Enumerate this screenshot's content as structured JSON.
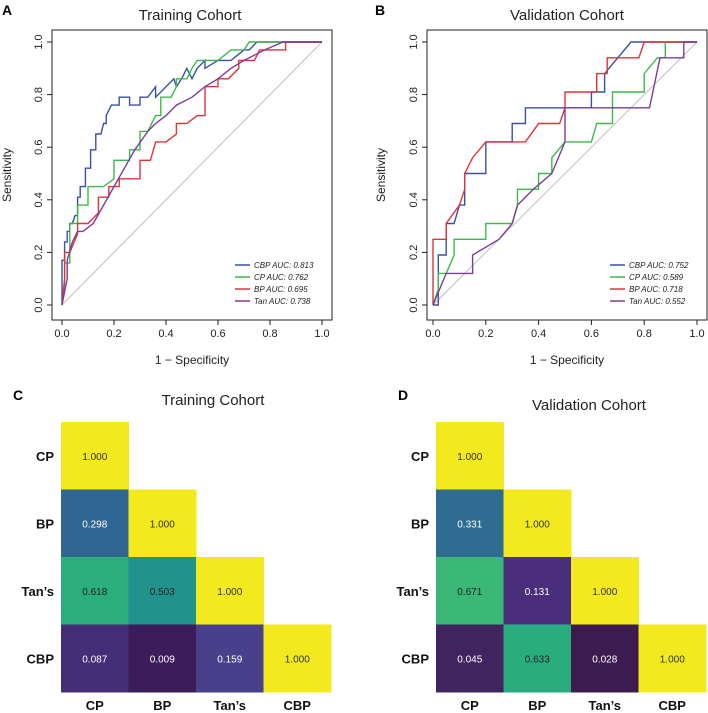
{
  "colors": {
    "CBP": "#3a50a8",
    "CP": "#3fb84a",
    "BP": "#e0333a",
    "Tan": "#7d3c98",
    "diagonal": "#bfbfbf"
  },
  "chart_data": [
    {
      "type": "line",
      "panel": "A",
      "title": "Training Cohort",
      "xlabel": "1 − Specificity",
      "ylabel": "Sensitivity",
      "xlim": [
        0,
        1
      ],
      "ylim": [
        0,
        1
      ],
      "xticks": [
        "0.0",
        "0.2",
        "0.4",
        "0.6",
        "0.8",
        "1.0"
      ],
      "yticks": [
        "0.0",
        "0.2",
        "0.4",
        "0.6",
        "0.8",
        "1.0"
      ],
      "diagonal": true,
      "legend_position": "bottom-right",
      "series": [
        {
          "name": "CBP",
          "legend": "CBP AUC: 0.813",
          "color_key": "CBP",
          "x": [
            0,
            0,
            0.01,
            0.01,
            0.02,
            0.02,
            0.03,
            0.03,
            0.04,
            0.05,
            0.06,
            0.06,
            0.07,
            0.07,
            0.09,
            0.09,
            0.11,
            0.11,
            0.13,
            0.13,
            0.15,
            0.16,
            0.17,
            0.17,
            0.19,
            0.22,
            0.22,
            0.26,
            0.26,
            0.3,
            0.3,
            0.33,
            0.36,
            0.36,
            0.4,
            0.43,
            0.44,
            0.46,
            0.48,
            0.5,
            0.52,
            0.55,
            0.55,
            0.6,
            0.65,
            0.7,
            0.72,
            0.75,
            0.8,
            0.85,
            0.9,
            0.95,
            1
          ],
          "y": [
            0,
            0.17,
            0.17,
            0.24,
            0.24,
            0.28,
            0.28,
            0.31,
            0.31,
            0.34,
            0.34,
            0.41,
            0.41,
            0.45,
            0.45,
            0.52,
            0.52,
            0.59,
            0.59,
            0.65,
            0.65,
            0.69,
            0.69,
            0.72,
            0.76,
            0.76,
            0.79,
            0.79,
            0.76,
            0.76,
            0.79,
            0.79,
            0.83,
            0.79,
            0.83,
            0.86,
            0.83,
            0.86,
            0.9,
            0.86,
            0.9,
            0.93,
            0.9,
            0.93,
            0.93,
            0.97,
            0.97,
            1.0,
            1.0,
            1.0,
            1.0,
            1.0,
            1.0
          ]
        },
        {
          "name": "CP",
          "legend": "CP  AUC: 0.762",
          "color_key": "CP",
          "x": [
            0,
            0.01,
            0.01,
            0.03,
            0.03,
            0.06,
            0.06,
            0.1,
            0.1,
            0.12,
            0.16,
            0.2,
            0.2,
            0.26,
            0.26,
            0.3,
            0.3,
            0.33,
            0.36,
            0.38,
            0.38,
            0.42,
            0.44,
            0.44,
            0.48,
            0.5,
            0.52,
            0.55,
            0.6,
            0.65,
            0.7,
            0.72,
            0.74,
            0.8,
            0.9,
            1
          ],
          "y": [
            0,
            0.08,
            0.16,
            0.16,
            0.31,
            0.31,
            0.38,
            0.38,
            0.45,
            0.45,
            0.45,
            0.48,
            0.55,
            0.55,
            0.59,
            0.59,
            0.66,
            0.66,
            0.72,
            0.72,
            0.79,
            0.79,
            0.83,
            0.86,
            0.86,
            0.9,
            0.93,
            0.93,
            0.93,
            0.97,
            0.97,
            1.0,
            1.0,
            1.0,
            1.0,
            1.0
          ]
        },
        {
          "name": "BP",
          "legend": "BP  AUC: 0.695",
          "color_key": "BP",
          "x": [
            0,
            0.01,
            0.01,
            0.03,
            0.06,
            0.06,
            0.1,
            0.14,
            0.14,
            0.18,
            0.18,
            0.22,
            0.22,
            0.3,
            0.3,
            0.34,
            0.36,
            0.4,
            0.44,
            0.44,
            0.48,
            0.52,
            0.55,
            0.55,
            0.6,
            0.6,
            0.64,
            0.68,
            0.68,
            0.74,
            0.76,
            0.86,
            0.86,
            1
          ],
          "y": [
            0,
            0.1,
            0.2,
            0.2,
            0.27,
            0.31,
            0.31,
            0.35,
            0.41,
            0.41,
            0.45,
            0.45,
            0.48,
            0.48,
            0.55,
            0.55,
            0.62,
            0.62,
            0.65,
            0.69,
            0.69,
            0.72,
            0.72,
            0.83,
            0.83,
            0.86,
            0.86,
            0.9,
            0.93,
            0.93,
            0.97,
            0.97,
            1.0,
            1.0
          ]
        },
        {
          "name": "Tan",
          "legend": "Tan AUC: 0.738",
          "color_key": "Tan",
          "x": [
            0,
            0.02,
            0.02,
            0.04,
            0.06,
            0.08,
            0.12,
            0.16,
            0.2,
            0.24,
            0.28,
            0.33,
            0.36,
            0.4,
            0.44,
            0.5,
            0.55,
            0.6,
            0.65,
            0.7,
            0.78,
            0.85,
            0.9,
            1
          ],
          "y": [
            0,
            0.1,
            0.17,
            0.24,
            0.28,
            0.28,
            0.31,
            0.38,
            0.45,
            0.52,
            0.59,
            0.66,
            0.69,
            0.72,
            0.76,
            0.79,
            0.83,
            0.86,
            0.9,
            0.93,
            0.97,
            1.0,
            1.0,
            1.0
          ]
        }
      ]
    },
    {
      "type": "line",
      "panel": "B",
      "title": "Validation Cohort",
      "xlabel": "1 − Specificity",
      "ylabel": "Sensitivity",
      "xlim": [
        0,
        1
      ],
      "ylim": [
        0,
        1
      ],
      "xticks": [
        "0.0",
        "0.2",
        "0.4",
        "0.6",
        "0.8",
        "1.0"
      ],
      "yticks": [
        "0.0",
        "0.2",
        "0.4",
        "0.6",
        "0.8",
        "1.0"
      ],
      "diagonal": true,
      "legend_position": "bottom-right",
      "series": [
        {
          "name": "CBP",
          "legend": "CBP AUC: 0.752",
          "color_key": "CBP",
          "x": [
            0,
            0.02,
            0.02,
            0.05,
            0.05,
            0.08,
            0.1,
            0.12,
            0.12,
            0.15,
            0.2,
            0.2,
            0.25,
            0.3,
            0.3,
            0.35,
            0.35,
            0.5,
            0.55,
            0.55,
            0.6,
            0.6,
            0.62,
            0.65,
            0.65,
            0.75,
            0.8,
            1
          ],
          "y": [
            0,
            0,
            0.19,
            0.19,
            0.31,
            0.31,
            0.38,
            0.38,
            0.5,
            0.5,
            0.5,
            0.62,
            0.62,
            0.62,
            0.69,
            0.69,
            0.75,
            0.75,
            0.75,
            0.75,
            0.75,
            0.81,
            0.81,
            0.81,
            0.88,
            1.0,
            1.0,
            1.0
          ]
        },
        {
          "name": "CP",
          "legend": "CP  AUC: 0.589",
          "color_key": "CP",
          "x": [
            0,
            0.02,
            0.02,
            0.05,
            0.08,
            0.08,
            0.2,
            0.2,
            0.3,
            0.32,
            0.32,
            0.35,
            0.4,
            0.4,
            0.45,
            0.45,
            0.5,
            0.55,
            0.6,
            0.62,
            0.68,
            0.68,
            0.8,
            0.8,
            0.85,
            0.88,
            0.88,
            1
          ],
          "y": [
            0,
            0.06,
            0.12,
            0.12,
            0.19,
            0.25,
            0.25,
            0.31,
            0.31,
            0.38,
            0.44,
            0.44,
            0.44,
            0.5,
            0.5,
            0.56,
            0.62,
            0.62,
            0.62,
            0.69,
            0.69,
            0.81,
            0.81,
            0.88,
            0.94,
            0.94,
            1.0,
            1.0
          ]
        },
        {
          "name": "BP",
          "legend": "BP  AUC: 0.718",
          "color_key": "BP",
          "x": [
            0,
            0,
            0.05,
            0.05,
            0.1,
            0.12,
            0.12,
            0.15,
            0.2,
            0.22,
            0.22,
            0.25,
            0.32,
            0.35,
            0.4,
            0.4,
            0.48,
            0.5,
            0.5,
            0.62,
            0.62,
            0.66,
            0.66,
            0.78,
            0.8,
            0.8,
            1
          ],
          "y": [
            0,
            0.25,
            0.25,
            0.31,
            0.38,
            0.44,
            0.5,
            0.56,
            0.62,
            0.62,
            0.62,
            0.62,
            0.62,
            0.62,
            0.69,
            0.69,
            0.69,
            0.75,
            0.81,
            0.81,
            0.88,
            0.88,
            0.94,
            0.94,
            1.0,
            1.0,
            1.0
          ]
        },
        {
          "name": "Tan",
          "legend": "Tan AUC: 0.552",
          "color_key": "Tan",
          "x": [
            0,
            0.05,
            0.05,
            0.15,
            0.15,
            0.25,
            0.3,
            0.32,
            0.32,
            0.38,
            0.38,
            0.45,
            0.45,
            0.5,
            0.5,
            0.56,
            0.56,
            0.75,
            0.82,
            0.86,
            0.88,
            0.95,
            0.95,
            1
          ],
          "y": [
            0,
            0.12,
            0.12,
            0.12,
            0.19,
            0.25,
            0.31,
            0.38,
            0.38,
            0.44,
            0.44,
            0.5,
            0.5,
            0.62,
            0.75,
            0.75,
            0.75,
            0.75,
            0.75,
            0.94,
            0.94,
            0.94,
            1.0,
            1.0
          ]
        }
      ]
    },
    {
      "type": "heatmap",
      "panel": "C",
      "title": "Training Cohort",
      "rows": [
        "CP",
        "BP",
        "Tan’s",
        "CBP"
      ],
      "cols": [
        "CP",
        "BP",
        "Tan’s",
        "CBP"
      ],
      "cells": [
        {
          "r": 0,
          "c": 0,
          "value": "1.000",
          "color": "#f3e91f",
          "text_color": "#333333"
        },
        {
          "r": 1,
          "c": 0,
          "value": "0.298",
          "color": "#2f6692",
          "text_color": "#ffffff"
        },
        {
          "r": 1,
          "c": 1,
          "value": "1.000",
          "color": "#f3e91f",
          "text_color": "#333333"
        },
        {
          "r": 2,
          "c": 0,
          "value": "0.618",
          "color": "#29ae7c",
          "text_color": "#222222"
        },
        {
          "r": 2,
          "c": 1,
          "value": "0.503",
          "color": "#20918b",
          "text_color": "#222222"
        },
        {
          "r": 2,
          "c": 2,
          "value": "1.000",
          "color": "#f3e91f",
          "text_color": "#333333"
        },
        {
          "r": 3,
          "c": 0,
          "value": "0.087",
          "color": "#452d77",
          "text_color": "#ffffff"
        },
        {
          "r": 3,
          "c": 1,
          "value": "0.009",
          "color": "#3c1c5a",
          "text_color": "#ffffff"
        },
        {
          "r": 3,
          "c": 2,
          "value": "0.159",
          "color": "#48408b",
          "text_color": "#ffffff"
        },
        {
          "r": 3,
          "c": 3,
          "value": "1.000",
          "color": "#f3e91f",
          "text_color": "#333333"
        }
      ]
    },
    {
      "type": "heatmap",
      "panel": "D",
      "title": "Validation Cohort",
      "rows": [
        "CP",
        "BP",
        "Tan’s",
        "CBP"
      ],
      "cols": [
        "CP",
        "BP",
        "Tan’s",
        "CBP"
      ],
      "cells": [
        {
          "r": 0,
          "c": 0,
          "value": "1.000",
          "color": "#f3e91f",
          "text_color": "#333333"
        },
        {
          "r": 1,
          "c": 0,
          "value": "0.331",
          "color": "#2e6c92",
          "text_color": "#ffffff"
        },
        {
          "r": 1,
          "c": 1,
          "value": "1.000",
          "color": "#f3e91f",
          "text_color": "#333333"
        },
        {
          "r": 2,
          "c": 0,
          "value": "0.671",
          "color": "#3bb776",
          "text_color": "#222222"
        },
        {
          "r": 2,
          "c": 1,
          "value": "0.131",
          "color": "#4a2e7d",
          "text_color": "#ffffff"
        },
        {
          "r": 2,
          "c": 2,
          "value": "1.000",
          "color": "#f3e91f",
          "text_color": "#333333"
        },
        {
          "r": 3,
          "c": 0,
          "value": "0.045",
          "color": "#40245f",
          "text_color": "#ffffff"
        },
        {
          "r": 3,
          "c": 1,
          "value": "0.633",
          "color": "#29ad7e",
          "text_color": "#222222"
        },
        {
          "r": 3,
          "c": 2,
          "value": "0.028",
          "color": "#3d1b50",
          "text_color": "#ffffff"
        },
        {
          "r": 3,
          "c": 3,
          "value": "1.000",
          "color": "#f3e91f",
          "text_color": "#333333"
        }
      ]
    }
  ]
}
